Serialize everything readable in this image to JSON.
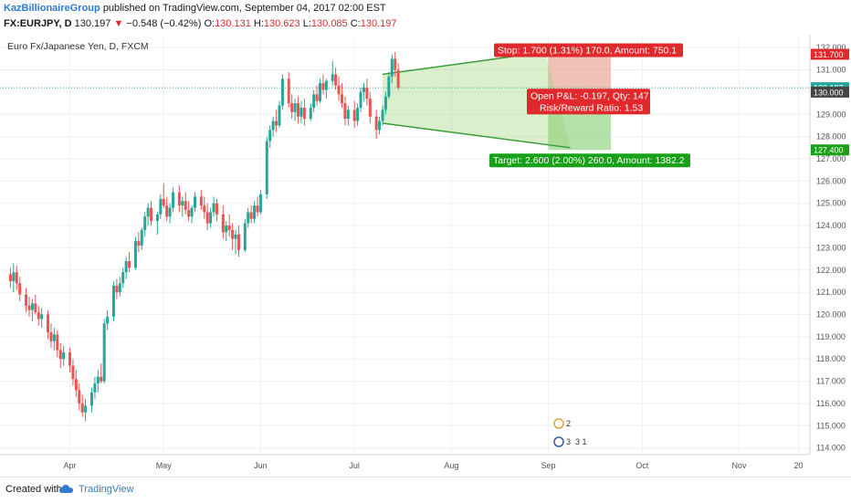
{
  "header": {
    "author": "KazBillionaireGroup",
    "published_text": "published on TradingView.com, September 04, 2017 02:00 EST",
    "symbol": "FX:EURJPY, D",
    "last": "130.197",
    "change": "−0.548 (−0.42%)",
    "o_label": "O:",
    "o_value": "130.131",
    "h_label": "H:",
    "h_value": "130.623",
    "l_label": "L:",
    "l_value": "130.085",
    "c_label": "C:",
    "c_value": "130.197"
  },
  "footer": {
    "created_with": "Created with",
    "brand": "TradingView"
  },
  "colors": {
    "up": "#26a69a",
    "down": "#ef5350",
    "wedge": "#3a9c3a",
    "stop_box": "#e0292c",
    "target_box": "#18a018",
    "grid": "#eef0f3"
  },
  "chart_data": {
    "type": "candlestick",
    "title": "Euro Fx/Japanese Yen, D, FXCM",
    "ylim": [
      113.7,
      132.5
    ],
    "y_ticks": [
      "132.000",
      "131.000",
      "130.000",
      "129.000",
      "128.000",
      "127.000",
      "126.000",
      "125.000",
      "124.000",
      "123.000",
      "122.000",
      "121.000",
      "120.000",
      "119.000",
      "118.000",
      "117.000",
      "116.000",
      "115.000",
      "114.000"
    ],
    "x_ticks": [
      {
        "label": "Apr",
        "day": 20
      },
      {
        "label": "May",
        "day": 50
      },
      {
        "label": "Jun",
        "day": 81
      },
      {
        "label": "Jul",
        "day": 111
      },
      {
        "label": "Aug",
        "day": 142
      },
      {
        "label": "Sep",
        "day": 173
      },
      {
        "label": "Oct",
        "day": 203
      },
      {
        "label": "Nov",
        "day": 234
      },
      {
        "label": "20",
        "day": 253
      }
    ],
    "price_labels": [
      {
        "text": "131.700",
        "value": 131.7,
        "kind": "stop"
      },
      {
        "text": "130.197",
        "value": 130.197,
        "kind": "last"
      },
      {
        "text": "130.000",
        "value": 130.0,
        "kind": "entry"
      },
      {
        "text": "127.400",
        "value": 127.4,
        "kind": "target"
      }
    ],
    "position": {
      "stop_text": "Stop: 1.700 (1.31%) 170.0, Amount: 750.1",
      "pnl_text": "Open P&L: -0.197, Qty: 147",
      "rr_text": "Risk/Reward Ratio: 1.53",
      "target_text": "Target: 2.600 (2.00%) 260.0, Amount: 1382.2",
      "entry": 130.0,
      "stop": 131.7,
      "target": 127.4,
      "start_day": 173,
      "end_day": 193
    },
    "wedge": {
      "upper": [
        [
          120,
          130.8
        ],
        [
          172,
          131.8
        ]
      ],
      "lower": [
        [
          120,
          128.6
        ],
        [
          180,
          127.5
        ]
      ]
    },
    "events_text": [
      "2",
      "3",
      "3 1"
    ],
    "candles": [
      [
        1,
        121.8,
        122.1,
        121.2,
        121.5
      ],
      [
        2,
        121.5,
        122.3,
        121.0,
        121.9
      ],
      [
        3,
        121.9,
        122.2,
        121.1,
        121.4
      ],
      [
        4,
        121.4,
        121.7,
        120.6,
        120.9
      ],
      [
        6,
        120.9,
        121.2,
        120.1,
        120.4
      ],
      [
        7,
        120.4,
        120.8,
        119.9,
        120.2
      ],
      [
        8,
        120.2,
        120.7,
        119.7,
        120.5
      ],
      [
        9,
        120.5,
        120.9,
        120.0,
        120.1
      ],
      [
        10,
        120.1,
        120.4,
        119.5,
        119.8
      ],
      [
        11,
        119.8,
        120.3,
        119.4,
        120.0
      ],
      [
        13,
        120.0,
        120.2,
        118.9,
        119.2
      ],
      [
        14,
        119.2,
        119.6,
        118.5,
        118.8
      ],
      [
        15,
        118.8,
        119.4,
        118.4,
        119.1
      ],
      [
        16,
        119.1,
        119.3,
        118.1,
        118.4
      ],
      [
        17,
        118.4,
        118.7,
        117.6,
        118.0
      ],
      [
        18,
        118.0,
        118.6,
        117.7,
        118.3
      ],
      [
        20,
        118.3,
        118.5,
        117.4,
        117.7
      ],
      [
        21,
        117.7,
        118.0,
        116.8,
        117.1
      ],
      [
        22,
        117.1,
        117.5,
        116.3,
        116.6
      ],
      [
        23,
        116.6,
        116.9,
        115.7,
        116.0
      ],
      [
        24,
        116.0,
        116.4,
        115.4,
        115.6
      ],
      [
        25,
        115.6,
        116.2,
        115.2,
        115.9
      ],
      [
        27,
        115.9,
        116.7,
        115.6,
        116.5
      ],
      [
        28,
        116.5,
        117.2,
        116.2,
        116.9
      ],
      [
        29,
        116.9,
        117.5,
        116.5,
        117.2
      ],
      [
        30,
        117.2,
        117.8,
        116.9,
        117.0
      ],
      [
        31,
        117.0,
        119.8,
        116.9,
        119.6
      ],
      [
        32,
        119.6,
        120.2,
        119.3,
        119.9
      ],
      [
        34,
        119.9,
        121.5,
        119.7,
        121.3
      ],
      [
        35,
        121.3,
        121.6,
        120.7,
        121.0
      ],
      [
        36,
        121.0,
        121.7,
        120.8,
        121.4
      ],
      [
        37,
        121.4,
        122.1,
        121.2,
        121.9
      ],
      [
        38,
        121.9,
        122.6,
        121.6,
        122.4
      ],
      [
        39,
        122.4,
        122.8,
        121.9,
        122.1
      ],
      [
        41,
        122.1,
        123.5,
        122.0,
        123.3
      ],
      [
        42,
        123.3,
        123.7,
        122.8,
        123.1
      ],
      [
        43,
        123.1,
        123.9,
        122.9,
        123.8
      ],
      [
        44,
        123.8,
        124.6,
        123.5,
        124.4
      ],
      [
        45,
        124.4,
        125.0,
        124.0,
        124.8
      ],
      [
        46,
        124.8,
        125.1,
        124.0,
        124.2
      ],
      [
        48,
        124.2,
        124.6,
        123.6,
        124.5
      ],
      [
        49,
        124.5,
        125.4,
        124.3,
        125.2
      ],
      [
        50,
        125.2,
        125.9,
        124.8,
        124.9
      ],
      [
        51,
        124.9,
        125.3,
        124.2,
        124.4
      ],
      [
        52,
        124.4,
        125.0,
        124.1,
        124.8
      ],
      [
        53,
        124.8,
        125.7,
        124.6,
        125.5
      ],
      [
        55,
        125.5,
        125.8,
        124.6,
        124.9
      ],
      [
        56,
        124.9,
        125.3,
        124.4,
        125.1
      ],
      [
        57,
        125.1,
        125.5,
        124.5,
        124.7
      ],
      [
        58,
        124.7,
        125.1,
        124.2,
        124.4
      ],
      [
        59,
        124.4,
        124.9,
        124.1,
        124.8
      ],
      [
        60,
        124.8,
        125.5,
        124.6,
        125.3
      ],
      [
        62,
        125.3,
        125.6,
        124.7,
        124.9
      ],
      [
        63,
        124.9,
        125.3,
        124.3,
        124.6
      ],
      [
        64,
        124.6,
        125.0,
        123.8,
        124.1
      ],
      [
        65,
        124.1,
        124.8,
        123.9,
        124.6
      ],
      [
        66,
        124.6,
        125.3,
        124.4,
        125.0
      ],
      [
        67,
        125.0,
        125.2,
        124.2,
        124.5
      ],
      [
        69,
        124.5,
        124.9,
        123.4,
        123.7
      ],
      [
        70,
        123.7,
        124.2,
        123.3,
        124.0
      ],
      [
        71,
        124.0,
        124.5,
        123.5,
        123.8
      ],
      [
        72,
        123.8,
        124.1,
        122.9,
        123.4
      ],
      [
        73,
        123.4,
        123.8,
        122.7,
        123.6
      ],
      [
        74,
        123.6,
        124.0,
        122.6,
        122.9
      ],
      [
        76,
        122.9,
        124.3,
        122.8,
        124.1
      ],
      [
        77,
        124.1,
        124.8,
        123.9,
        124.6
      ],
      [
        78,
        124.6,
        124.9,
        124.1,
        124.3
      ],
      [
        79,
        124.3,
        125.1,
        124.1,
        124.9
      ],
      [
        80,
        124.9,
        125.3,
        124.4,
        124.6
      ],
      [
        81,
        124.6,
        125.6,
        124.5,
        125.4
      ],
      [
        83,
        125.4,
        128.0,
        125.2,
        127.8
      ],
      [
        84,
        127.8,
        128.5,
        127.5,
        128.3
      ],
      [
        85,
        128.3,
        128.9,
        128.0,
        128.7
      ],
      [
        86,
        128.7,
        129.2,
        128.2,
        128.5
      ],
      [
        87,
        128.5,
        129.6,
        128.4,
        129.4
      ],
      [
        88,
        129.4,
        130.8,
        129.2,
        130.6
      ],
      [
        90,
        130.6,
        130.9,
        129.3,
        129.5
      ],
      [
        91,
        129.5,
        129.9,
        128.8,
        129.1
      ],
      [
        92,
        129.1,
        129.7,
        128.7,
        129.5
      ],
      [
        93,
        129.5,
        129.8,
        128.6,
        128.9
      ],
      [
        94,
        128.9,
        129.6,
        128.6,
        129.3
      ],
      [
        95,
        129.3,
        129.7,
        128.5,
        128.8
      ],
      [
        97,
        128.8,
        129.5,
        128.7,
        129.3
      ],
      [
        98,
        129.3,
        130.1,
        129.1,
        129.9
      ],
      [
        99,
        129.9,
        130.3,
        129.4,
        129.6
      ],
      [
        100,
        129.6,
        130.6,
        129.5,
        130.4
      ],
      [
        101,
        130.4,
        130.8,
        129.9,
        130.1
      ],
      [
        102,
        130.1,
        130.6,
        129.7,
        130.5
      ],
      [
        104,
        130.5,
        131.4,
        130.3,
        130.8
      ],
      [
        105,
        130.8,
        131.1,
        130.1,
        130.3
      ],
      [
        106,
        130.3,
        130.7,
        129.6,
        129.9
      ],
      [
        107,
        129.9,
        130.4,
        129.3,
        129.5
      ],
      [
        108,
        129.5,
        129.8,
        128.5,
        128.8
      ],
      [
        109,
        128.8,
        129.4,
        128.5,
        129.2
      ],
      [
        111,
        129.2,
        129.6,
        128.4,
        128.7
      ],
      [
        112,
        128.7,
        129.5,
        128.5,
        129.3
      ],
      [
        113,
        129.3,
        130.2,
        129.1,
        130.0
      ],
      [
        114,
        130.0,
        130.4,
        129.6,
        130.2
      ],
      [
        115,
        130.2,
        130.6,
        129.4,
        129.7
      ],
      [
        116,
        129.7,
        130.0,
        128.6,
        128.9
      ],
      [
        118,
        128.9,
        129.2,
        127.9,
        128.3
      ],
      [
        119,
        128.3,
        128.9,
        128.1,
        128.7
      ],
      [
        120,
        128.7,
        129.4,
        128.5,
        129.2
      ],
      [
        121,
        129.2,
        130.0,
        129.0,
        129.8
      ],
      [
        122,
        129.8,
        130.9,
        129.7,
        130.7
      ],
      [
        123,
        130.7,
        131.7,
        130.4,
        131.5
      ],
      [
        124,
        131.5,
        131.8,
        130.7,
        131.0
      ],
      [
        125,
        131.0,
        131.3,
        130.1,
        130.2
      ]
    ]
  }
}
